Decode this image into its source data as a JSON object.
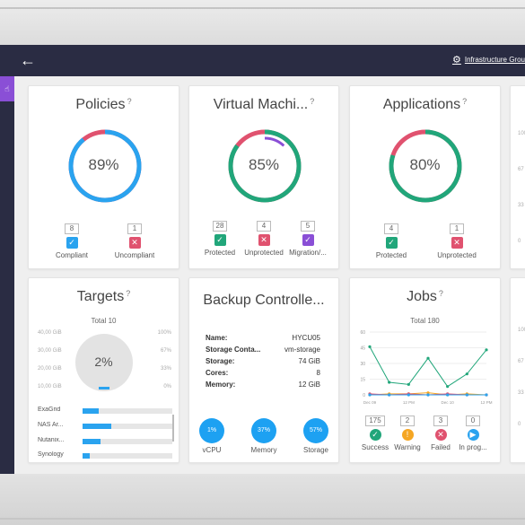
{
  "header": {
    "back_icon": "arrow-left-icon",
    "brand_icon": "infrastructure-logo-icon",
    "brand_label": "Infrastructure Grou"
  },
  "sidebar": {
    "active_icon": "pointer-icon"
  },
  "policies": {
    "title": "Policies",
    "percent": 89,
    "percent_label": "89%",
    "compliant_count": "8",
    "compliant_label": "Compliant",
    "uncompliant_count": "1",
    "uncompliant_label": "Uncompliant",
    "colors": {
      "ok": "#2aa3ef",
      "bad": "#e0526f"
    }
  },
  "vms": {
    "title": "Virtual Machi...",
    "percent": 85,
    "percent_label": "85%",
    "protected_count": "28",
    "protected_label": "Protected",
    "unprotected_count": "4",
    "unprotected_label": "Unprotected",
    "migration_count": "5",
    "migration_label": "Migration/...",
    "colors": {
      "ok": "#21a67a",
      "bad": "#e0526f",
      "migration": "#8a4fd6"
    }
  },
  "applications": {
    "title": "Applications",
    "percent": 80,
    "percent_label": "80%",
    "protected_count": "4",
    "protected_label": "Protected",
    "unprotected_count": "1",
    "unprotected_label": "Unprotected"
  },
  "targets": {
    "title": "Targets",
    "total_label": "Total 10",
    "percent_label": "2%",
    "axis_left": [
      "40,00 GiB",
      "30,00 GiB",
      "20,00 GiB",
      "10,00 GiB"
    ],
    "axis_right": [
      "100%",
      "67%",
      "33%",
      "0%"
    ],
    "items": [
      {
        "name": "ExaGrid",
        "value": 0.18
      },
      {
        "name": "NAS Ar...",
        "value": 0.32
      },
      {
        "name": "Nutanix...",
        "value": 0.2
      },
      {
        "name": "Synology",
        "value": 0.08
      }
    ]
  },
  "backup": {
    "title": "Backup Controlle...",
    "rows": [
      {
        "key": "Name:",
        "value": "HYCU05"
      },
      {
        "key": "Storage Conta...",
        "value": "vm-storage"
      },
      {
        "key": "Storage:",
        "value": "74 GiB"
      },
      {
        "key": "Cores:",
        "value": "8"
      },
      {
        "key": "Memory:",
        "value": "12 GiB"
      }
    ],
    "usage": [
      {
        "label": "vCPU",
        "value": "1%"
      },
      {
        "label": "Memory",
        "value": "37%"
      },
      {
        "label": "Storage",
        "value": "57%"
      }
    ]
  },
  "jobs": {
    "title": "Jobs",
    "total_label": "Total 180",
    "chart_data": {
      "type": "line",
      "categories": [
        "Dec 09",
        "",
        "12 PM",
        "",
        "Dec 10",
        "",
        "12 PM"
      ],
      "ylim": [
        0,
        60
      ],
      "yticks": [
        "60",
        "45",
        "30",
        "15",
        "0"
      ],
      "series": [
        {
          "name": "Success",
          "color": "#21a67a",
          "values": [
            46,
            12,
            10,
            35,
            8,
            20,
            43
          ]
        },
        {
          "name": "Warning",
          "color": "#f5a623",
          "values": [
            0,
            1,
            1,
            2,
            0,
            1,
            0
          ]
        },
        {
          "name": "Failed",
          "color": "#e0526f",
          "values": [
            1,
            0,
            1,
            0,
            1,
            0,
            0
          ]
        },
        {
          "name": "In progress",
          "color": "#2aa3ef",
          "values": [
            0,
            0,
            0,
            0,
            0,
            0,
            0
          ]
        }
      ]
    },
    "legend": [
      {
        "count": "175",
        "label": "Success"
      },
      {
        "count": "2",
        "label": "Warning"
      },
      {
        "count": "3",
        "label": "Failed"
      },
      {
        "count": "0",
        "label": "In prog..."
      }
    ]
  }
}
